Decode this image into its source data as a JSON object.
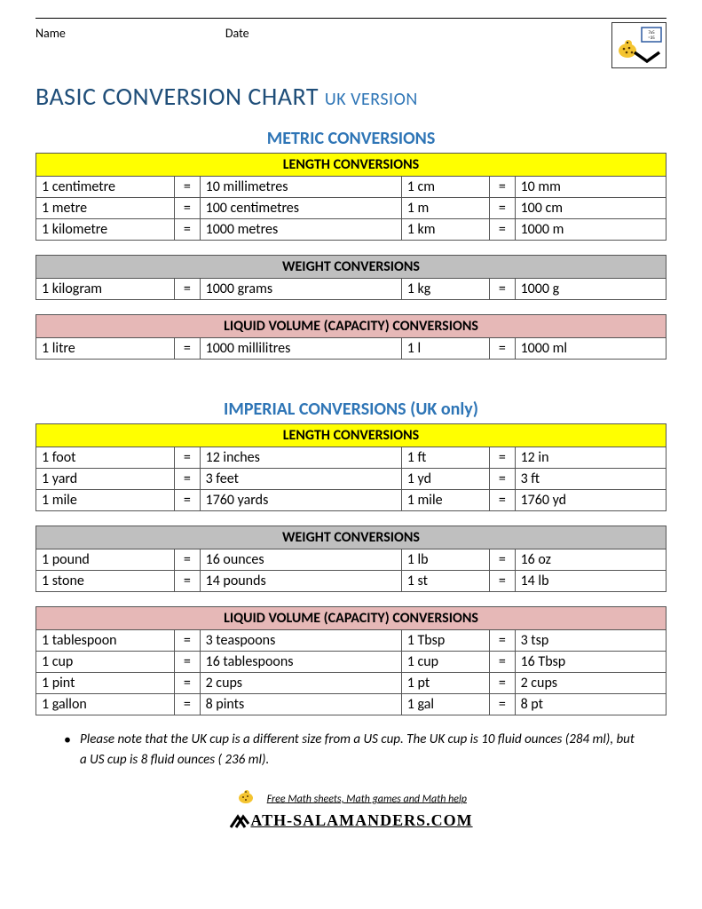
{
  "labels": {
    "name": "Name",
    "date": "Date"
  },
  "title": {
    "main": "BASIC CONVERSION CHART",
    "sub": "UK VERSION"
  },
  "colors": {
    "title_main": "#1f4e79",
    "title_sub": "#2e75b6",
    "section": "#2e75b6",
    "hdr_yellow": "#ffff00",
    "hdr_gray": "#bfbfbf",
    "hdr_pink": "#e6b8b7",
    "border": "#555555",
    "text": "#000000",
    "background": "#ffffff"
  },
  "sections": [
    {
      "heading": "METRIC CONVERSIONS",
      "tables": [
        {
          "header": "LENGTH CONVERSIONS",
          "header_class": "hdr-yellow",
          "rows": [
            [
              "1 centimetre",
              "=",
              "10 millimetres",
              "1 cm",
              "=",
              "10 mm"
            ],
            [
              "1 metre",
              "=",
              "100 centimetres",
              "1 m",
              "=",
              "100 cm"
            ],
            [
              "1 kilometre",
              "=",
              "1000 metres",
              "1 km",
              "=",
              "1000 m"
            ]
          ]
        },
        {
          "header": "WEIGHT CONVERSIONS",
          "header_class": "hdr-gray",
          "rows": [
            [
              "1 kilogram",
              "=",
              "1000 grams",
              "1 kg",
              "=",
              "1000 g"
            ]
          ]
        },
        {
          "header": "LIQUID VOLUME (CAPACITY) CONVERSIONS",
          "header_class": "hdr-pink",
          "rows": [
            [
              "1 litre",
              "=",
              "1000 millilitres",
              "1 l",
              "=",
              "1000 ml"
            ]
          ]
        }
      ]
    },
    {
      "heading": "IMPERIAL CONVERSIONS (UK only)",
      "tables": [
        {
          "header": "LENGTH CONVERSIONS",
          "header_class": "hdr-yellow",
          "rows": [
            [
              "1 foot",
              "=",
              "12 inches",
              "1 ft",
              "=",
              "12 in"
            ],
            [
              "1 yard",
              "=",
              "3 feet",
              "1 yd",
              "=",
              "3 ft"
            ],
            [
              "1 mile",
              "=",
              "1760 yards",
              "1 mile",
              "=",
              "1760 yd"
            ]
          ]
        },
        {
          "header": "WEIGHT CONVERSIONS",
          "header_class": "hdr-gray",
          "rows": [
            [
              "1 pound",
              "=",
              "16 ounces",
              "1 lb",
              "=",
              "16 oz"
            ],
            [
              "1 stone",
              "=",
              "14 pounds",
              "1 st",
              "=",
              "14 lb"
            ]
          ]
        },
        {
          "header": "LIQUID VOLUME (CAPACITY) CONVERSIONS",
          "header_class": "hdr-pink",
          "rows": [
            [
              "1 tablespoon",
              "=",
              "3 teaspoons",
              "1 Tbsp",
              "=",
              "3 tsp"
            ],
            [
              "1 cup",
              "=",
              "16 tablespoons",
              "1 cup",
              "=",
              "16 Tbsp"
            ],
            [
              "1 pint",
              "=",
              "2 cups",
              "1 pt",
              "=",
              "2 cups"
            ],
            [
              "1 gallon",
              "=",
              "8 pints",
              "1 gal",
              "=",
              "8 pt"
            ]
          ]
        }
      ]
    }
  ],
  "note": "Please note that the UK cup is a different size from a US cup. The UK cup is 10 fluid ounces (284 ml), but a US cup is 8 fluid ounces ( 236 ml).",
  "footer": {
    "line1": "Free Math sheets, Math games and Math help",
    "site": "ATH-SALAMANDERS.COM"
  }
}
